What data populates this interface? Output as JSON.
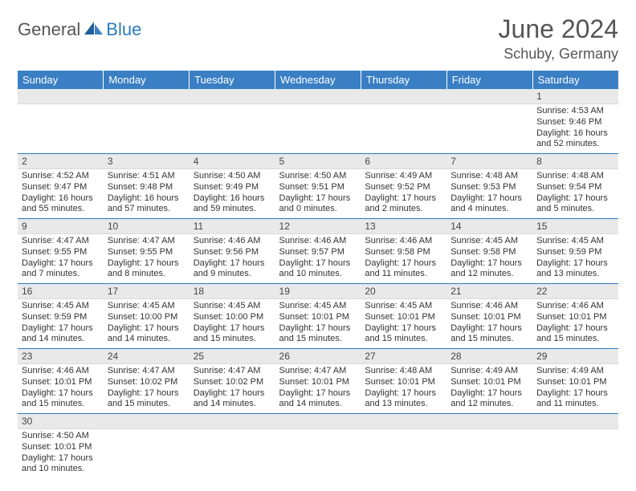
{
  "logo": {
    "general": "General",
    "blue": "Blue"
  },
  "title": "June 2024",
  "location": "Schuby, Germany",
  "weekdays": [
    "Sunday",
    "Monday",
    "Tuesday",
    "Wednesday",
    "Thursday",
    "Friday",
    "Saturday"
  ],
  "colors": {
    "header_bg": "#3a7fc4",
    "header_fg": "#ffffff",
    "daynum_bg": "#e9e9e9",
    "border": "#2b7bbf",
    "text": "#333333",
    "title": "#555555",
    "logo_gray": "#555555",
    "logo_blue": "#2b7bbf"
  },
  "weeks": [
    [
      {
        "day": "",
        "lines": []
      },
      {
        "day": "",
        "lines": []
      },
      {
        "day": "",
        "lines": []
      },
      {
        "day": "",
        "lines": []
      },
      {
        "day": "",
        "lines": []
      },
      {
        "day": "",
        "lines": []
      },
      {
        "day": "1",
        "lines": [
          "Sunrise: 4:53 AM",
          "Sunset: 9:46 PM",
          "Daylight: 16 hours and 52 minutes."
        ]
      }
    ],
    [
      {
        "day": "2",
        "lines": [
          "Sunrise: 4:52 AM",
          "Sunset: 9:47 PM",
          "Daylight: 16 hours and 55 minutes."
        ]
      },
      {
        "day": "3",
        "lines": [
          "Sunrise: 4:51 AM",
          "Sunset: 9:48 PM",
          "Daylight: 16 hours and 57 minutes."
        ]
      },
      {
        "day": "4",
        "lines": [
          "Sunrise: 4:50 AM",
          "Sunset: 9:49 PM",
          "Daylight: 16 hours and 59 minutes."
        ]
      },
      {
        "day": "5",
        "lines": [
          "Sunrise: 4:50 AM",
          "Sunset: 9:51 PM",
          "Daylight: 17 hours and 0 minutes."
        ]
      },
      {
        "day": "6",
        "lines": [
          "Sunrise: 4:49 AM",
          "Sunset: 9:52 PM",
          "Daylight: 17 hours and 2 minutes."
        ]
      },
      {
        "day": "7",
        "lines": [
          "Sunrise: 4:48 AM",
          "Sunset: 9:53 PM",
          "Daylight: 17 hours and 4 minutes."
        ]
      },
      {
        "day": "8",
        "lines": [
          "Sunrise: 4:48 AM",
          "Sunset: 9:54 PM",
          "Daylight: 17 hours and 5 minutes."
        ]
      }
    ],
    [
      {
        "day": "9",
        "lines": [
          "Sunrise: 4:47 AM",
          "Sunset: 9:55 PM",
          "Daylight: 17 hours and 7 minutes."
        ]
      },
      {
        "day": "10",
        "lines": [
          "Sunrise: 4:47 AM",
          "Sunset: 9:55 PM",
          "Daylight: 17 hours and 8 minutes."
        ]
      },
      {
        "day": "11",
        "lines": [
          "Sunrise: 4:46 AM",
          "Sunset: 9:56 PM",
          "Daylight: 17 hours and 9 minutes."
        ]
      },
      {
        "day": "12",
        "lines": [
          "Sunrise: 4:46 AM",
          "Sunset: 9:57 PM",
          "Daylight: 17 hours and 10 minutes."
        ]
      },
      {
        "day": "13",
        "lines": [
          "Sunrise: 4:46 AM",
          "Sunset: 9:58 PM",
          "Daylight: 17 hours and 11 minutes."
        ]
      },
      {
        "day": "14",
        "lines": [
          "Sunrise: 4:45 AM",
          "Sunset: 9:58 PM",
          "Daylight: 17 hours and 12 minutes."
        ]
      },
      {
        "day": "15",
        "lines": [
          "Sunrise: 4:45 AM",
          "Sunset: 9:59 PM",
          "Daylight: 17 hours and 13 minutes."
        ]
      }
    ],
    [
      {
        "day": "16",
        "lines": [
          "Sunrise: 4:45 AM",
          "Sunset: 9:59 PM",
          "Daylight: 17 hours and 14 minutes."
        ]
      },
      {
        "day": "17",
        "lines": [
          "Sunrise: 4:45 AM",
          "Sunset: 10:00 PM",
          "Daylight: 17 hours and 14 minutes."
        ]
      },
      {
        "day": "18",
        "lines": [
          "Sunrise: 4:45 AM",
          "Sunset: 10:00 PM",
          "Daylight: 17 hours and 15 minutes."
        ]
      },
      {
        "day": "19",
        "lines": [
          "Sunrise: 4:45 AM",
          "Sunset: 10:01 PM",
          "Daylight: 17 hours and 15 minutes."
        ]
      },
      {
        "day": "20",
        "lines": [
          "Sunrise: 4:45 AM",
          "Sunset: 10:01 PM",
          "Daylight: 17 hours and 15 minutes."
        ]
      },
      {
        "day": "21",
        "lines": [
          "Sunrise: 4:46 AM",
          "Sunset: 10:01 PM",
          "Daylight: 17 hours and 15 minutes."
        ]
      },
      {
        "day": "22",
        "lines": [
          "Sunrise: 4:46 AM",
          "Sunset: 10:01 PM",
          "Daylight: 17 hours and 15 minutes."
        ]
      }
    ],
    [
      {
        "day": "23",
        "lines": [
          "Sunrise: 4:46 AM",
          "Sunset: 10:01 PM",
          "Daylight: 17 hours and 15 minutes."
        ]
      },
      {
        "day": "24",
        "lines": [
          "Sunrise: 4:47 AM",
          "Sunset: 10:02 PM",
          "Daylight: 17 hours and 15 minutes."
        ]
      },
      {
        "day": "25",
        "lines": [
          "Sunrise: 4:47 AM",
          "Sunset: 10:02 PM",
          "Daylight: 17 hours and 14 minutes."
        ]
      },
      {
        "day": "26",
        "lines": [
          "Sunrise: 4:47 AM",
          "Sunset: 10:01 PM",
          "Daylight: 17 hours and 14 minutes."
        ]
      },
      {
        "day": "27",
        "lines": [
          "Sunrise: 4:48 AM",
          "Sunset: 10:01 PM",
          "Daylight: 17 hours and 13 minutes."
        ]
      },
      {
        "day": "28",
        "lines": [
          "Sunrise: 4:49 AM",
          "Sunset: 10:01 PM",
          "Daylight: 17 hours and 12 minutes."
        ]
      },
      {
        "day": "29",
        "lines": [
          "Sunrise: 4:49 AM",
          "Sunset: 10:01 PM",
          "Daylight: 17 hours and 11 minutes."
        ]
      }
    ],
    [
      {
        "day": "30",
        "lines": [
          "Sunrise: 4:50 AM",
          "Sunset: 10:01 PM",
          "Daylight: 17 hours and 10 minutes."
        ]
      },
      {
        "day": "",
        "lines": []
      },
      {
        "day": "",
        "lines": []
      },
      {
        "day": "",
        "lines": []
      },
      {
        "day": "",
        "lines": []
      },
      {
        "day": "",
        "lines": []
      },
      {
        "day": "",
        "lines": []
      }
    ]
  ]
}
